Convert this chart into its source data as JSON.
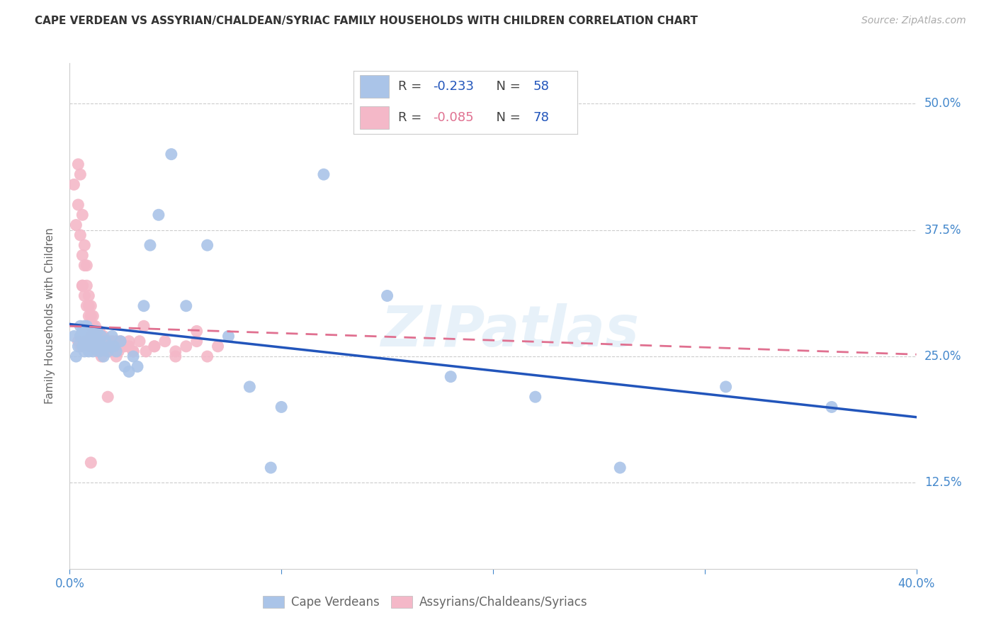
{
  "title": "CAPE VERDEAN VS ASSYRIAN/CHALDEAN/SYRIAC FAMILY HOUSEHOLDS WITH CHILDREN CORRELATION CHART",
  "source": "Source: ZipAtlas.com",
  "ylabel": "Family Households with Children",
  "xlim": [
    0.0,
    0.4
  ],
  "ylim": [
    0.04,
    0.54
  ],
  "x_tick_vals": [
    0.0,
    0.1,
    0.2,
    0.3,
    0.4
  ],
  "x_tick_labels_show": [
    "0.0%",
    "",
    "",
    "",
    "40.0%"
  ],
  "y_tick_vals": [
    0.125,
    0.25,
    0.375,
    0.5
  ],
  "y_tick_labels": [
    "12.5%",
    "25.0%",
    "37.5%",
    "50.0%"
  ],
  "blue_R": -0.233,
  "blue_N": 58,
  "pink_R": -0.085,
  "pink_N": 78,
  "blue_color": "#aac4e8",
  "pink_color": "#f4b8c8",
  "blue_line_color": "#2255bb",
  "pink_line_color": "#e07090",
  "watermark": "ZIPatlas",
  "legend_label_blue": "Cape Verdeans",
  "legend_label_pink": "Assyrians/Chaldeans/Syriacs",
  "blue_scatter_x": [
    0.002,
    0.003,
    0.004,
    0.005,
    0.005,
    0.006,
    0.006,
    0.007,
    0.007,
    0.007,
    0.008,
    0.008,
    0.008,
    0.009,
    0.009,
    0.009,
    0.01,
    0.01,
    0.01,
    0.011,
    0.011,
    0.012,
    0.012,
    0.013,
    0.013,
    0.014,
    0.014,
    0.015,
    0.015,
    0.016,
    0.017,
    0.018,
    0.019,
    0.02,
    0.021,
    0.022,
    0.024,
    0.026,
    0.028,
    0.03,
    0.032,
    0.035,
    0.038,
    0.042,
    0.048,
    0.055,
    0.065,
    0.075,
    0.085,
    0.1,
    0.12,
    0.15,
    0.18,
    0.22,
    0.26,
    0.31,
    0.36,
    0.095
  ],
  "blue_scatter_y": [
    0.27,
    0.25,
    0.26,
    0.28,
    0.27,
    0.26,
    0.275,
    0.265,
    0.255,
    0.28,
    0.26,
    0.27,
    0.28,
    0.265,
    0.255,
    0.275,
    0.26,
    0.27,
    0.265,
    0.255,
    0.275,
    0.26,
    0.27,
    0.265,
    0.275,
    0.255,
    0.265,
    0.27,
    0.26,
    0.25,
    0.265,
    0.255,
    0.26,
    0.27,
    0.26,
    0.255,
    0.265,
    0.24,
    0.235,
    0.25,
    0.24,
    0.3,
    0.36,
    0.39,
    0.45,
    0.3,
    0.36,
    0.27,
    0.22,
    0.2,
    0.43,
    0.31,
    0.23,
    0.21,
    0.14,
    0.22,
    0.2,
    0.14
  ],
  "pink_scatter_x": [
    0.002,
    0.003,
    0.004,
    0.004,
    0.005,
    0.005,
    0.006,
    0.006,
    0.006,
    0.007,
    0.007,
    0.007,
    0.008,
    0.008,
    0.008,
    0.009,
    0.009,
    0.009,
    0.01,
    0.01,
    0.01,
    0.01,
    0.011,
    0.011,
    0.012,
    0.012,
    0.012,
    0.013,
    0.013,
    0.013,
    0.014,
    0.014,
    0.015,
    0.015,
    0.016,
    0.016,
    0.017,
    0.017,
    0.018,
    0.018,
    0.019,
    0.02,
    0.021,
    0.022,
    0.023,
    0.024,
    0.026,
    0.028,
    0.03,
    0.033,
    0.036,
    0.04,
    0.045,
    0.05,
    0.055,
    0.06,
    0.065,
    0.07,
    0.012,
    0.004,
    0.005,
    0.007,
    0.009,
    0.016,
    0.02,
    0.025,
    0.03,
    0.04,
    0.01,
    0.008,
    0.006,
    0.015,
    0.018,
    0.022,
    0.028,
    0.035,
    0.05,
    0.06
  ],
  "pink_scatter_y": [
    0.42,
    0.38,
    0.44,
    0.4,
    0.43,
    0.37,
    0.39,
    0.35,
    0.32,
    0.36,
    0.34,
    0.31,
    0.34,
    0.3,
    0.32,
    0.31,
    0.29,
    0.3,
    0.28,
    0.29,
    0.3,
    0.27,
    0.28,
    0.29,
    0.27,
    0.26,
    0.28,
    0.265,
    0.275,
    0.255,
    0.265,
    0.275,
    0.26,
    0.27,
    0.26,
    0.27,
    0.255,
    0.265,
    0.255,
    0.265,
    0.255,
    0.265,
    0.255,
    0.265,
    0.255,
    0.265,
    0.26,
    0.265,
    0.255,
    0.265,
    0.255,
    0.26,
    0.265,
    0.255,
    0.26,
    0.265,
    0.25,
    0.26,
    0.27,
    0.265,
    0.26,
    0.265,
    0.26,
    0.26,
    0.265,
    0.26,
    0.255,
    0.26,
    0.145,
    0.265,
    0.32,
    0.25,
    0.21,
    0.25,
    0.26,
    0.28,
    0.25,
    0.275
  ]
}
